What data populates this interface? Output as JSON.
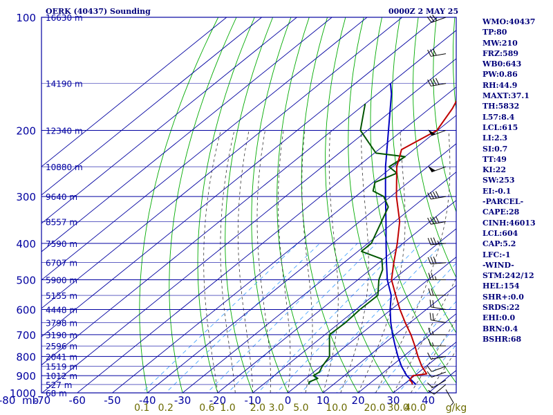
{
  "header": {
    "title": "OERK (40437) Sounding",
    "time": "0000Z  2 MAY 25"
  },
  "indices": [
    "WMO:40437",
    "TP:80",
    "MW:210",
    "FRZ:589",
    "WB0:643",
    "PW:0.86",
    "RH:44.9",
    "MAXT:37.1",
    "TH:5832",
    "L57:8.4",
    "LCL:615",
    "LI:2.3",
    "SI:0.7",
    "TT:49",
    "KI:22",
    "SW:253",
    "EI:-0.1",
    "-PARCEL-",
    "CAPE:28",
    "CINH:46013",
    "LCL:604",
    "CAP:5.2",
    "LFC:-1",
    "-WIND-",
    "STM:242/12",
    "HEL:154",
    "SHR+:0.0",
    "SRDS:22",
    "EHI:0.0",
    "BRN:0.4",
    "BSHR:68"
  ],
  "colors": {
    "background": "#ffffff",
    "grid": "#0000a0",
    "dry_adiabat": "#00aa00",
    "moist_adiabat": "#333333",
    "mixing_ratio": "#3399ff",
    "temperature": "#c00000",
    "dewpoint": "#005500",
    "parcel": "#0000c0",
    "label_text": "#00007a",
    "mix_label_text": "#6b6b00",
    "wind_barb": "#000000"
  },
  "chart_data": {
    "type": "skew-t",
    "pressure_ticks": [
      100,
      200,
      300,
      400,
      500,
      600,
      700,
      800,
      900,
      1000
    ],
    "pressure_axis_unit": "mb",
    "temperature_ticks": [
      -80,
      -70,
      -60,
      -50,
      -40,
      -30,
      -20,
      -10,
      0,
      10,
      20,
      30,
      40
    ],
    "temperature_tick_labels": [
      "-80",
      "-70",
      "-60",
      "-50",
      "-40",
      "-30",
      "-20",
      "-10",
      "0",
      "10",
      "20",
      "30",
      "40"
    ],
    "height_labels": [
      {
        "p": 100,
        "label": "16630 m"
      },
      {
        "p": 150,
        "label": "14190 m"
      },
      {
        "p": 200,
        "label": "12340 m"
      },
      {
        "p": 250,
        "label": "10880 m"
      },
      {
        "p": 300,
        "label": "9640 m"
      },
      {
        "p": 350,
        "label": "8557 m"
      },
      {
        "p": 400,
        "label": "7590 m"
      },
      {
        "p": 450,
        "label": "6707 m"
      },
      {
        "p": 500,
        "label": "5900 m"
      },
      {
        "p": 550,
        "label": "5155 m"
      },
      {
        "p": 600,
        "label": "4448 m"
      },
      {
        "p": 650,
        "label": "3798 m"
      },
      {
        "p": 700,
        "label": "3190 m"
      },
      {
        "p": 750,
        "label": "2596 m"
      },
      {
        "p": 800,
        "label": "2041 m"
      },
      {
        "p": 850,
        "label": "1519 m"
      },
      {
        "p": 900,
        "label": "1012 m"
      },
      {
        "p": 950,
        "label": "527 m"
      },
      {
        "p": 1000,
        "label": "68 m"
      }
    ],
    "mixing_ratio_labels": [
      "0.1",
      "0.2",
      "0.6",
      "1.0",
      "2.0",
      "3.0",
      "5.0",
      "10.0",
      "20.0",
      "30.0",
      "40.0",
      "g/kg"
    ],
    "mixing_ratio_values": [
      0.1,
      0.2,
      0.6,
      1.0,
      2.0,
      3.0,
      5.0,
      10.0,
      20.0,
      30.0,
      40.0
    ],
    "temperature_profile": [
      [
        950,
        32.5
      ],
      [
        935,
        31.4
      ],
      [
        925,
        30.2
      ],
      [
        900,
        29.5
      ],
      [
        890,
        32.8
      ],
      [
        850,
        28.8
      ],
      [
        800,
        24.2
      ],
      [
        750,
        19.6
      ],
      [
        700,
        14.5
      ],
      [
        650,
        8.6
      ],
      [
        600,
        2.5
      ],
      [
        550,
        -3.7
      ],
      [
        500,
        -10.4
      ],
      [
        450,
        -15.8
      ],
      [
        400,
        -21.6
      ],
      [
        350,
        -28.6
      ],
      [
        300,
        -38.4
      ],
      [
        250,
        -48.8
      ],
      [
        225,
        -53.5
      ],
      [
        200,
        -50.2
      ],
      [
        175,
        -53.5
      ],
      [
        150,
        -58.5
      ],
      [
        125,
        -69.0
      ],
      [
        100,
        -79.0
      ]
    ],
    "dewpoint_profile": [
      [
        950,
        3.0
      ],
      [
        935,
        2.2
      ],
      [
        915,
        3.4
      ],
      [
        900,
        1.2
      ],
      [
        880,
        1.6
      ],
      [
        850,
        0.4
      ],
      [
        800,
        -1.0
      ],
      [
        700,
        -8.7
      ],
      [
        650,
        -8.4
      ],
      [
        600,
        -8.9
      ],
      [
        550,
        -8.8
      ],
      [
        500,
        -14.0
      ],
      [
        470,
        -16.5
      ],
      [
        440,
        -20.5
      ],
      [
        420,
        -29.0
      ],
      [
        400,
        -29.0
      ],
      [
        320,
        -37.0
      ],
      [
        300,
        -42.0
      ],
      [
        290,
        -47.0
      ],
      [
        275,
        -49.5
      ],
      [
        260,
        -46.5
      ],
      [
        250,
        -51.0
      ],
      [
        235,
        -50.0
      ],
      [
        230,
        -59.5
      ],
      [
        220,
        -63.5
      ],
      [
        200,
        -72.0
      ],
      [
        170,
        -80.0
      ]
    ],
    "parcel_profile": [
      [
        950,
        33.5
      ],
      [
        900,
        27.8
      ],
      [
        850,
        23.0
      ],
      [
        800,
        18.5
      ],
      [
        750,
        14.0
      ],
      [
        700,
        9.3
      ],
      [
        650,
        4.5
      ],
      [
        600,
        -0.3
      ],
      [
        550,
        -5.0
      ],
      [
        500,
        -11.6
      ],
      [
        450,
        -17.9
      ],
      [
        400,
        -24.8
      ],
      [
        350,
        -32.5
      ],
      [
        300,
        -41.5
      ],
      [
        250,
        -52.0
      ],
      [
        200,
        -64.0
      ],
      [
        160,
        -76.0
      ],
      [
        150,
        -80.0
      ]
    ],
    "wind_levels": [
      {
        "p": 980,
        "dir": 150,
        "spd": 5
      },
      {
        "p": 950,
        "dir": 230,
        "spd": 10
      },
      {
        "p": 925,
        "dir": 240,
        "spd": 10
      },
      {
        "p": 880,
        "dir": 250,
        "spd": 10
      },
      {
        "p": 850,
        "dir": 250,
        "spd": 10
      },
      {
        "p": 800,
        "dir": 260,
        "spd": 10
      },
      {
        "p": 750,
        "dir": 270,
        "spd": 15
      },
      {
        "p": 700,
        "dir": 270,
        "spd": 15
      },
      {
        "p": 650,
        "dir": 280,
        "spd": 20
      },
      {
        "p": 600,
        "dir": 280,
        "spd": 20
      },
      {
        "p": 550,
        "dir": 270,
        "spd": 20
      },
      {
        "p": 500,
        "dir": 270,
        "spd": 25
      },
      {
        "p": 450,
        "dir": 265,
        "spd": 30
      },
      {
        "p": 400,
        "dir": 265,
        "spd": 35
      },
      {
        "p": 350,
        "dir": 260,
        "spd": 40
      },
      {
        "p": 300,
        "dir": 260,
        "spd": 40
      },
      {
        "p": 250,
        "dir": 250,
        "spd": 50
      },
      {
        "p": 200,
        "dir": 250,
        "spd": 50
      },
      {
        "p": 150,
        "dir": 260,
        "spd": 40
      },
      {
        "p": 125,
        "dir": 260,
        "spd": 30
      },
      {
        "p": 100,
        "dir": 250,
        "spd": 30
      }
    ]
  }
}
